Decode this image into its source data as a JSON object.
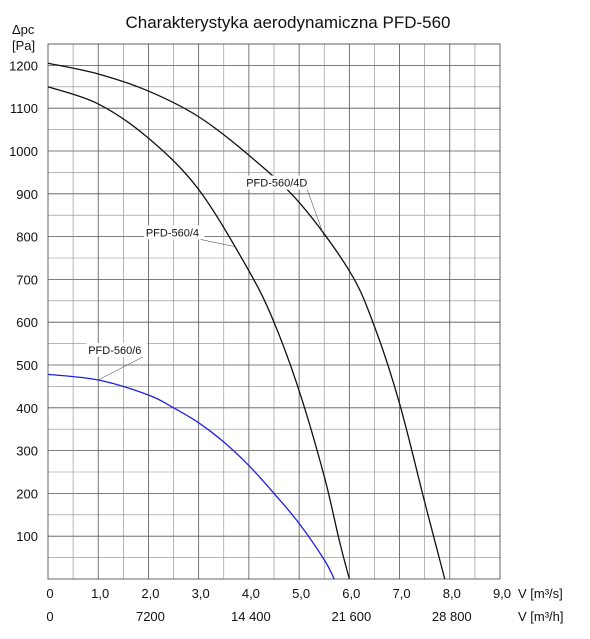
{
  "chart_data": {
    "type": "line",
    "title": "Charakterystyka aerodynamiczna PFD-560",
    "ylabel_line1": "Δpc",
    "ylabel_line2": "[Pa]",
    "xlabel_primary": "V [m³/s]",
    "xlabel_secondary": "V [m³/h]",
    "xlim": [
      0,
      9.0
    ],
    "ylim": [
      0,
      1250
    ],
    "y_ticks": [
      100,
      200,
      300,
      400,
      500,
      600,
      700,
      800,
      900,
      1000,
      1100,
      1200
    ],
    "x_ticks": [
      {
        "value": 0,
        "label": "0"
      },
      {
        "value": 1.0,
        "label": "1,0"
      },
      {
        "value": 2.0,
        "label": "2,0"
      },
      {
        "value": 3.0,
        "label": "3,0"
      },
      {
        "value": 4.0,
        "label": "4,0"
      },
      {
        "value": 5.0,
        "label": "5,0"
      },
      {
        "value": 6.0,
        "label": "6,0"
      },
      {
        "value": 7.0,
        "label": "7,0"
      },
      {
        "value": 8.0,
        "label": "8,0"
      },
      {
        "value": 9.0,
        "label": "9,0"
      }
    ],
    "x2_ticks": [
      {
        "value": 0,
        "label": "0"
      },
      {
        "value": 2.0,
        "label": "7200"
      },
      {
        "value": 4.0,
        "label": "14 400"
      },
      {
        "value": 6.0,
        "label": "21 600"
      },
      {
        "value": 8.0,
        "label": "28 800"
      }
    ],
    "grid": true,
    "series": [
      {
        "name": "PFD-560/4D",
        "color": "#111111",
        "x": [
          0,
          1.0,
          2.0,
          3.0,
          4.0,
          5.0,
          6.0,
          6.5,
          7.0,
          7.5,
          7.9
        ],
        "y": [
          1205,
          1180,
          1140,
          1080,
          990,
          880,
          720,
          590,
          410,
          180,
          0
        ]
      },
      {
        "name": "PFD-560/4",
        "color": "#111111",
        "x": [
          0,
          1.0,
          2.0,
          3.0,
          4.0,
          4.5,
          5.0,
          5.5,
          5.8,
          6.0
        ],
        "y": [
          1150,
          1110,
          1030,
          910,
          720,
          600,
          440,
          240,
          90,
          0
        ]
      },
      {
        "name": "PFD-560/6",
        "color": "#1f1fe6",
        "x": [
          0,
          1.0,
          2.0,
          2.5,
          3.0,
          3.5,
          4.0,
          4.5,
          5.0,
          5.5,
          5.7
        ],
        "y": [
          478,
          465,
          430,
          400,
          365,
          320,
          265,
          200,
          130,
          45,
          0
        ]
      }
    ]
  }
}
